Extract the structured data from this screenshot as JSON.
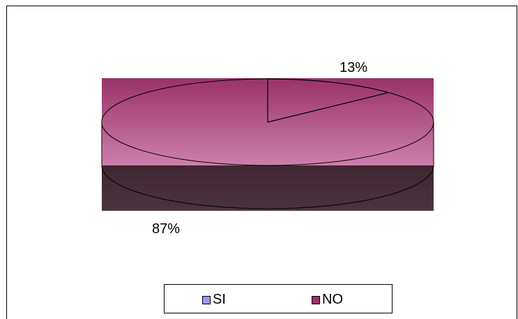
{
  "chart_data": {
    "type": "pie",
    "categories": [
      "SI",
      "NO"
    ],
    "values": [
      13,
      87
    ],
    "data_labels": [
      "13%",
      "87%"
    ],
    "colors": [
      "#9999ff",
      "#993366"
    ],
    "legend_position": "bottom",
    "three_d": true
  },
  "legend": {
    "items": [
      {
        "label": "SI",
        "color": "#9999ff"
      },
      {
        "label": "NO",
        "color": "#993366"
      }
    ]
  },
  "labels": {
    "si_pct": "13%",
    "no_pct": "87%"
  }
}
